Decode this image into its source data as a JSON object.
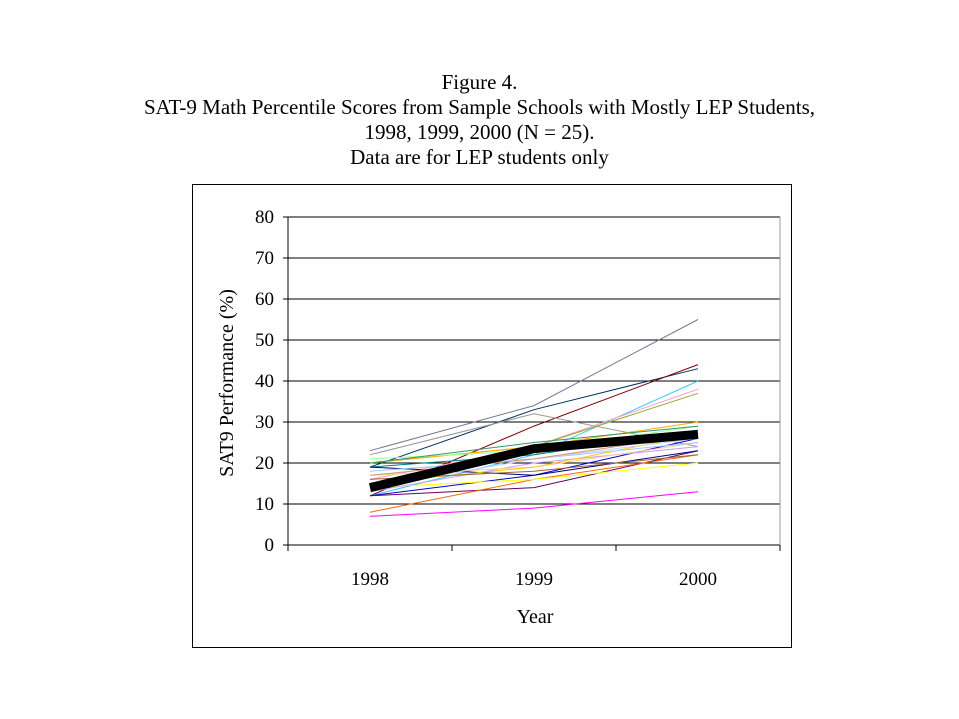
{
  "chart_data": {
    "type": "line",
    "title_lines": [
      "Figure 4.",
      "SAT-9 Math Percentile Scores from Sample Schools with Mostly LEP Students,",
      "1998, 1999, 2000 (N = 25).",
      "Data are for LEP students only"
    ],
    "xlabel": "Year",
    "ylabel": "SAT9 Performance (%)",
    "categories": [
      "1998",
      "1999",
      "2000"
    ],
    "ylim": [
      0,
      80
    ],
    "yticks": [
      0,
      10,
      20,
      30,
      40,
      50,
      60,
      70,
      80
    ],
    "grid": "horizontal",
    "series": [
      {
        "color": "#777799",
        "values": [
          23,
          34,
          55
        ]
      },
      {
        "color": "#003366",
        "values": [
          19,
          33,
          43
        ]
      },
      {
        "color": "#800000",
        "values": [
          12,
          29,
          44
        ]
      },
      {
        "color": "#999999",
        "values": [
          22,
          32,
          24
        ]
      },
      {
        "color": "#33ccff",
        "values": [
          12,
          22,
          40
        ]
      },
      {
        "color": "#ff99cc",
        "values": [
          16,
          24,
          38
        ]
      },
      {
        "color": "#99aa22",
        "values": [
          20,
          24,
          37
        ]
      },
      {
        "color": "#ffaa00",
        "values": [
          20,
          24,
          30
        ]
      },
      {
        "color": "#008080",
        "values": [
          19,
          22,
          28
        ]
      },
      {
        "color": "#0000cc",
        "values": [
          12,
          17,
          26
        ]
      },
      {
        "color": "#660066",
        "values": [
          12,
          14,
          23
        ]
      },
      {
        "color": "#ff6600",
        "values": [
          8,
          16,
          22
        ]
      },
      {
        "color": "#ff00ff",
        "values": [
          7,
          9,
          13
        ]
      },
      {
        "color": "#ffff00",
        "values": [
          14,
          16,
          20
        ]
      },
      {
        "color": "#99ff99",
        "values": [
          21,
          23,
          29
        ]
      },
      {
        "color": "#cc99ff",
        "values": [
          13,
          20,
          24
        ]
      },
      {
        "color": "#000080",
        "values": [
          19,
          17,
          23
        ]
      },
      {
        "color": "#ffcc99",
        "values": [
          17,
          19,
          25
        ]
      },
      {
        "color": "#ffcc00",
        "values": [
          15,
          19,
          27
        ]
      },
      {
        "color": "#99ccff",
        "values": [
          18,
          21,
          25
        ]
      },
      {
        "color": "#996633",
        "values": [
          16,
          18,
          22
        ]
      },
      {
        "color": "#339966",
        "values": [
          20,
          25,
          29
        ]
      },
      {
        "color": "#ccccff",
        "values": [
          14,
          21,
          26
        ]
      },
      {
        "color": "#cc9966",
        "values": [
          17,
          21,
          27
        ]
      },
      {
        "color": "#66ccff",
        "values": [
          15,
          23,
          28
        ]
      },
      {
        "color": "#000000",
        "values": [
          14,
          23.5,
          27
        ],
        "thick": true
      }
    ]
  }
}
